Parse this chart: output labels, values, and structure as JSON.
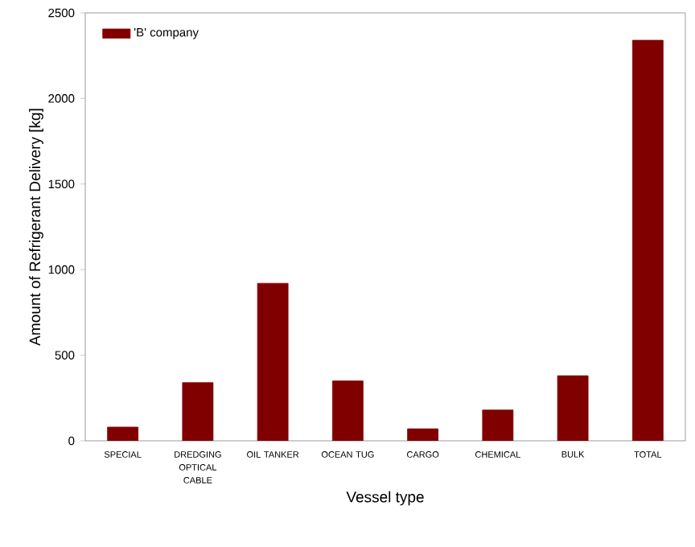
{
  "chart_data": {
    "type": "bar",
    "xlabel": "Vessel type",
    "ylabel": "Amount of Refrigerant Delivery [kg]",
    "categories": [
      "SPECIAL",
      "DREDGING OPTICAL CABLE",
      "OIL TANKER",
      "OCEAN TUG",
      "CARGO",
      "CHEMICAL",
      "BULK",
      "TOTAL"
    ],
    "series": [
      {
        "name": "'B' company",
        "color": "#800000",
        "values": [
          80,
          340,
          920,
          350,
          70,
          180,
          380,
          2340
        ]
      }
    ],
    "ylim": [
      0,
      2500
    ],
    "yticks": [
      0,
      500,
      1000,
      1500,
      2000,
      2500
    ],
    "legend": "top left",
    "grid": false
  }
}
